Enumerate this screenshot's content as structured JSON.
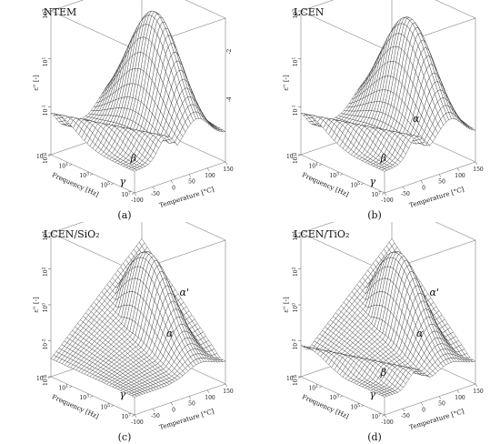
{
  "chart_data": [
    {
      "type": "surface3d",
      "title": "NTEM",
      "caption": "(a)",
      "xlabel": "Temperature [°C]",
      "ylabel": "Frequency [Hz]",
      "zlabel": "ε'' [-]",
      "x_ticks": [
        "-100",
        "-50",
        "0",
        "50",
        "100",
        "150"
      ],
      "y_ticks": [
        "10^-1",
        "10^1",
        "10^3",
        "10^5",
        "10^7"
      ],
      "z_ticks": [
        "10^3",
        "10^1",
        "10^-1",
        "10^-3"
      ],
      "xlim": [
        -100,
        150
      ],
      "ylim_log10": [
        -1,
        7
      ],
      "zlim_log10": [
        -3,
        3
      ],
      "side_ticks": [
        "-2",
        "-4"
      ],
      "peak": {
        "T": 70,
        "logf": 3,
        "logeps": 2.9
      },
      "relaxations": [
        {
          "label": "β",
          "T": -60,
          "logeps": -2.2
        },
        {
          "label": "γ",
          "T": -90,
          "logeps": -3.0
        }
      ]
    },
    {
      "type": "surface3d",
      "title": "LCEN",
      "caption": "(b)",
      "xlabel": "Temperature [°C]",
      "ylabel": "Frequency [Hz]",
      "zlabel": "ε'' [-]",
      "x_ticks": [
        "-100",
        "-50",
        "0",
        "50",
        "100",
        "150"
      ],
      "y_ticks": [
        "10^-1",
        "10^1",
        "10^3",
        "10^5",
        "10^7"
      ],
      "z_ticks": [
        "10^3",
        "10^1",
        "10^-1",
        "10^-3"
      ],
      "xlim": [
        -100,
        150
      ],
      "ylim_log10": [
        -1,
        7
      ],
      "zlim_log10": [
        -3,
        3
      ],
      "peak": {
        "T": 80,
        "logf": 3,
        "logeps": 2.6
      },
      "relaxations": [
        {
          "label": "α",
          "T": 30,
          "logeps": -1.0
        },
        {
          "label": "β",
          "T": -60,
          "logeps": -2.2
        },
        {
          "label": "γ",
          "T": -90,
          "logeps": -3.0
        }
      ]
    },
    {
      "type": "surface3d",
      "title": "LCEN/SiO₂",
      "caption": "(c)",
      "xlabel": "Temperature [°C]",
      "ylabel": "Frequency [Hz]",
      "zlabel": "ε'' [-]",
      "x_ticks": [
        "-100",
        "-50",
        "0",
        "50",
        "100",
        "150"
      ],
      "y_ticks": [
        "10^-1",
        "10^1",
        "10^3",
        "10^5",
        "10^7"
      ],
      "z_ticks": [
        "10^4",
        "10^2",
        "10^0",
        "10^-2",
        "10^-4"
      ],
      "xlim": [
        -100,
        150
      ],
      "ylim_log10": [
        -1,
        7
      ],
      "zlim_log10": [
        -4,
        4
      ],
      "peak": {
        "T": 80,
        "logf": 2,
        "logeps": 2.5
      },
      "relaxations": [
        {
          "label": "α'",
          "T": 80,
          "logeps": 1.0
        },
        {
          "label": "α",
          "T": 40,
          "logeps": -1.0
        },
        {
          "label": "γ",
          "T": -90,
          "logeps": -3.5
        }
      ]
    },
    {
      "type": "surface3d",
      "title": "LCEN/TiO₂",
      "caption": "(d)",
      "xlabel": "Temperature [°C]",
      "ylabel": "Frequency [Hz]",
      "zlabel": "ε'' [-]",
      "x_ticks": [
        "-100",
        "-50",
        "0",
        "50",
        "100",
        "150"
      ],
      "y_ticks": [
        "10^-1",
        "10^1",
        "10^3",
        "10^5",
        "10^7"
      ],
      "z_ticks": [
        "10^4",
        "10^2",
        "10^0",
        "10^-2",
        "10^-4"
      ],
      "xlim": [
        -100,
        150
      ],
      "ylim_log10": [
        -1,
        7
      ],
      "zlim_log10": [
        -4,
        4
      ],
      "peak": {
        "T": 80,
        "logf": 2,
        "logeps": 2.5
      },
      "relaxations": [
        {
          "label": "α'",
          "T": 80,
          "logeps": 1.0
        },
        {
          "label": "α",
          "T": 40,
          "logeps": -1.0
        },
        {
          "label": "β",
          "T": -60,
          "logeps": -2.5
        },
        {
          "label": "γ",
          "T": -90,
          "logeps": -3.5
        }
      ]
    }
  ]
}
